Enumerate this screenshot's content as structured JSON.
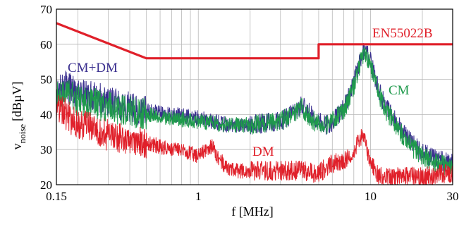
{
  "chart_data": {
    "type": "line",
    "xlabel": "f [MHz]",
    "ylabel_main": "v",
    "ylabel_sub": "noise",
    "ylabel_unit": "[dBµV]",
    "x_scale": "log",
    "xlim": [
      0.15,
      30
    ],
    "ylim": [
      20,
      70
    ],
    "grid": true,
    "x_ticks": [
      {
        "value": 0.15,
        "label": "0.15"
      },
      {
        "value": 1,
        "label": "1"
      },
      {
        "value": 10,
        "label": "10"
      },
      {
        "value": 30,
        "label": "30"
      }
    ],
    "y_ticks": [
      {
        "value": 20,
        "label": "20"
      },
      {
        "value": 30,
        "label": "30"
      },
      {
        "value": 40,
        "label": "40"
      },
      {
        "value": 50,
        "label": "50"
      },
      {
        "value": 60,
        "label": "60"
      },
      {
        "value": 70,
        "label": "70"
      }
    ],
    "series": [
      {
        "name": "EN55022B",
        "color": "#e0202a",
        "x": [
          0.15,
          0.5,
          5,
          5,
          30
        ],
        "y": [
          66,
          56,
          56,
          60,
          60
        ]
      },
      {
        "name": "CM+DM",
        "color": "#3a2f8f",
        "x": [
          0.15,
          0.17,
          0.2,
          0.25,
          0.3,
          0.4,
          0.5,
          0.7,
          1.0,
          1.5,
          2.0,
          3.0,
          3.5,
          4.0,
          4.5,
          5.0,
          5.5,
          6.0,
          7.0,
          8.0,
          8.5,
          9.0,
          9.3,
          10.0,
          11.0,
          12.0,
          14.0,
          16.0,
          18.0,
          20.0,
          25.0,
          30.0
        ],
        "y": [
          47,
          48,
          46,
          45,
          44,
          42,
          41,
          40,
          39,
          37,
          37,
          38,
          40,
          43,
          40,
          38,
          37,
          38,
          42,
          49,
          54,
          58,
          59,
          55,
          48,
          43,
          38,
          34,
          31,
          29,
          27,
          26
        ]
      },
      {
        "name": "CM",
        "color": "#1f9a4c",
        "x": [
          0.15,
          0.17,
          0.2,
          0.25,
          0.3,
          0.4,
          0.5,
          0.7,
          1.0,
          1.5,
          2.0,
          3.0,
          3.5,
          4.0,
          4.5,
          5.0,
          5.5,
          6.0,
          7.0,
          8.0,
          8.5,
          9.0,
          9.3,
          10.0,
          11.0,
          12.0,
          14.0,
          16.0,
          18.0,
          20.0,
          25.0,
          30.0
        ],
        "y": [
          45,
          46,
          44,
          43,
          42,
          41,
          40,
          39,
          38,
          37,
          37,
          38,
          40,
          42,
          39,
          37,
          37,
          38,
          41,
          48,
          53,
          57,
          58,
          54,
          47,
          42,
          37,
          33,
          30,
          28,
          26,
          25
        ]
      },
      {
        "name": "DM",
        "color": "#e0202a",
        "x": [
          0.15,
          0.17,
          0.2,
          0.25,
          0.3,
          0.4,
          0.5,
          0.7,
          0.9,
          1.0,
          1.1,
          1.2,
          1.3,
          1.5,
          2.0,
          3.0,
          4.0,
          5.0,
          5.5,
          6.0,
          7.0,
          8.0,
          8.5,
          9.0,
          9.3,
          10.0,
          11.0,
          13.0,
          16.0,
          20.0,
          25.0,
          30.0
        ],
        "y": [
          43,
          40,
          37,
          36,
          34,
          33,
          32,
          30,
          29,
          28,
          30,
          31,
          28,
          24,
          24,
          24,
          24,
          23,
          25,
          26,
          27,
          30,
          32,
          34,
          32,
          26,
          23,
          22,
          23,
          22,
          23,
          23
        ]
      }
    ]
  }
}
